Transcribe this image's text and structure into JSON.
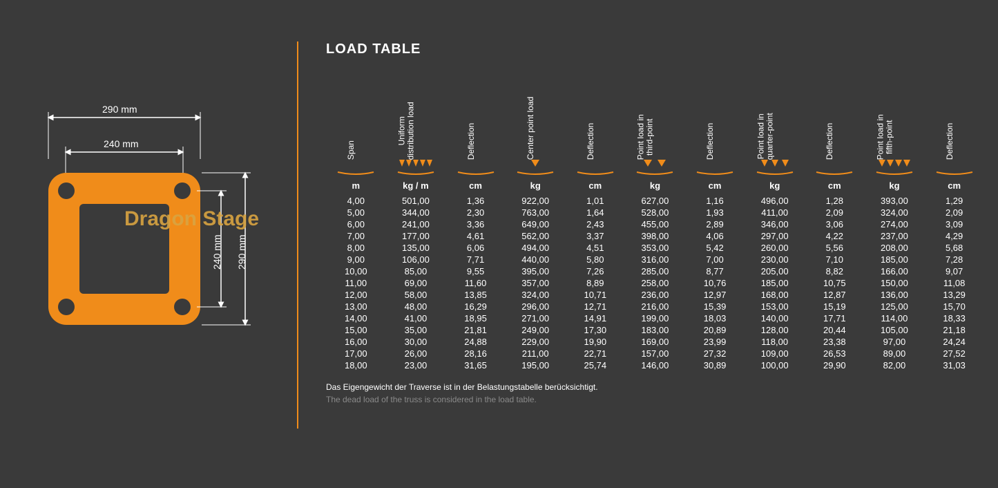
{
  "colors": {
    "background": "#3a3a3a",
    "accent": "#f08c1a",
    "text": "#ffffff",
    "text_muted": "#8a8a8a",
    "watermark": "#d9a441"
  },
  "typography": {
    "title_fontsize": 20,
    "body_fontsize": 13,
    "header_fontsize": 12
  },
  "diagram": {
    "outer_width_label": "290 mm",
    "inner_width_label": "240 mm",
    "outer_height_label": "290 mm",
    "inner_height_label": "240 mm"
  },
  "title": "LOAD TABLE",
  "table": {
    "columns": [
      {
        "label_lines": [
          "Span"
        ],
        "unit": "m",
        "load_type": null
      },
      {
        "label_lines": [
          "Uniform",
          "distribution load"
        ],
        "unit": "kg / m",
        "load_type": "uniform"
      },
      {
        "label_lines": [
          "Deflection"
        ],
        "unit": "cm",
        "load_type": null
      },
      {
        "label_lines": [
          "Center point load"
        ],
        "unit": "kg",
        "load_type": "center"
      },
      {
        "label_lines": [
          "Deflection"
        ],
        "unit": "cm",
        "load_type": null
      },
      {
        "label_lines": [
          "Point load in",
          "third-point"
        ],
        "unit": "kg",
        "load_type": "third"
      },
      {
        "label_lines": [
          "Deflection"
        ],
        "unit": "cm",
        "load_type": null
      },
      {
        "label_lines": [
          "Point load in",
          "quarter-point"
        ],
        "unit": "kg",
        "load_type": "quarter"
      },
      {
        "label_lines": [
          "Deflection"
        ],
        "unit": "cm",
        "load_type": null
      },
      {
        "label_lines": [
          "Point load in",
          "fifth-point"
        ],
        "unit": "kg",
        "load_type": "fifth"
      },
      {
        "label_lines": [
          "Deflection"
        ],
        "unit": "cm",
        "load_type": null
      }
    ],
    "rows": [
      [
        "4,00",
        "501,00",
        "1,36",
        "922,00",
        "1,01",
        "627,00",
        "1,16",
        "496,00",
        "1,28",
        "393,00",
        "1,29"
      ],
      [
        "5,00",
        "344,00",
        "2,30",
        "763,00",
        "1,64",
        "528,00",
        "1,93",
        "411,00",
        "2,09",
        "324,00",
        "2,09"
      ],
      [
        "6,00",
        "241,00",
        "3,36",
        "649,00",
        "2,43",
        "455,00",
        "2,89",
        "346,00",
        "3,06",
        "274,00",
        "3,09"
      ],
      [
        "7,00",
        "177,00",
        "4,61",
        "562,00",
        "3,37",
        "398,00",
        "4,06",
        "297,00",
        "4,22",
        "237,00",
        "4,29"
      ],
      [
        "8,00",
        "135,00",
        "6,06",
        "494,00",
        "4,51",
        "353,00",
        "5,42",
        "260,00",
        "5,56",
        "208,00",
        "5,68"
      ],
      [
        "9,00",
        "106,00",
        "7,71",
        "440,00",
        "5,80",
        "316,00",
        "7,00",
        "230,00",
        "7,10",
        "185,00",
        "7,28"
      ],
      [
        "10,00",
        "85,00",
        "9,55",
        "395,00",
        "7,26",
        "285,00",
        "8,77",
        "205,00",
        "8,82",
        "166,00",
        "9,07"
      ],
      [
        "11,00",
        "69,00",
        "11,60",
        "357,00",
        "8,89",
        "258,00",
        "10,76",
        "185,00",
        "10,75",
        "150,00",
        "11,08"
      ],
      [
        "12,00",
        "58,00",
        "13,85",
        "324,00",
        "10,71",
        "236,00",
        "12,97",
        "168,00",
        "12,87",
        "136,00",
        "13,29"
      ],
      [
        "13,00",
        "48,00",
        "16,29",
        "296,00",
        "12,71",
        "216,00",
        "15,39",
        "153,00",
        "15,19",
        "125,00",
        "15,70"
      ],
      [
        "14,00",
        "41,00",
        "18,95",
        "271,00",
        "14,91",
        "199,00",
        "18,03",
        "140,00",
        "17,71",
        "114,00",
        "18,33"
      ],
      [
        "15,00",
        "35,00",
        "21,81",
        "249,00",
        "17,30",
        "183,00",
        "20,89",
        "128,00",
        "20,44",
        "105,00",
        "21,18"
      ],
      [
        "16,00",
        "30,00",
        "24,88",
        "229,00",
        "19,90",
        "169,00",
        "23,99",
        "118,00",
        "23,38",
        "97,00",
        "24,24"
      ],
      [
        "17,00",
        "26,00",
        "28,16",
        "211,00",
        "22,71",
        "157,00",
        "27,32",
        "109,00",
        "26,53",
        "89,00",
        "27,52"
      ],
      [
        "18,00",
        "23,00",
        "31,65",
        "195,00",
        "25,74",
        "146,00",
        "30,89",
        "100,00",
        "29,90",
        "82,00",
        "31,03"
      ]
    ]
  },
  "footnote": {
    "de": "Das Eigengewicht der Traverse ist in der Belastungstabelle berücksichtigt.",
    "en": "The dead load of the truss is considered in the load table."
  },
  "watermark": "Dragon Stage"
}
